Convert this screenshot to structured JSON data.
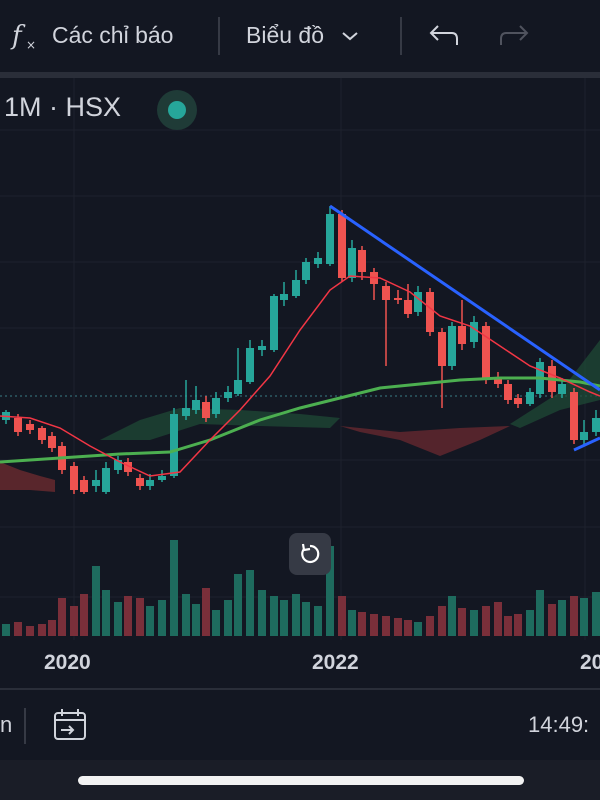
{
  "toolbar": {
    "indicators_icon": "fx-icon",
    "indicators_label": "Các chỉ báo",
    "chart_type_label": "Biểu đồ",
    "undo_icon": "undo-icon",
    "redo_icon": "redo-icon"
  },
  "symbol": {
    "label": "1M · HSX",
    "status_color": "#26a69a"
  },
  "colors": {
    "up": "#26a69a",
    "down": "#ef5350",
    "trendline": "#2962ff",
    "ma_long": "#4caf50",
    "ma_short": "#f23645",
    "background": "#131722"
  },
  "chart_data": {
    "type": "candlestick",
    "timeframe": "1M",
    "x_tick_labels": [
      "2020",
      "2022",
      "20"
    ],
    "annotations": [
      "descending trendline",
      "ichimoku cloud",
      "moving averages"
    ],
    "grid": true,
    "volume_panel": true
  },
  "bottom": {
    "left_partial_text": "n",
    "goto_date_icon": "calendar-arrow-icon",
    "time": "14:49:"
  }
}
